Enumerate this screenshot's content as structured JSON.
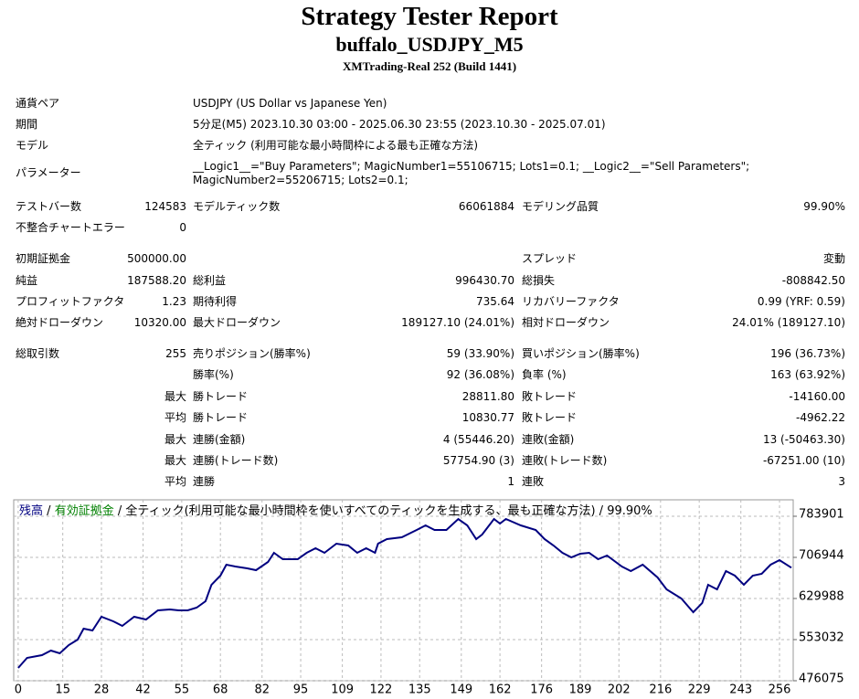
{
  "header": {
    "title": "Strategy Tester Report",
    "subtitle": "buffalo_USDJPY_M5",
    "server": "XMTrading-Real 252 (Build 1441)"
  },
  "table": {
    "info": [
      [
        "通貨ペア",
        "USDJPY (US Dollar vs Japanese Yen)"
      ],
      [
        "期間",
        "5分足(M5) 2023.10.30 03:00 - 2025.06.30 23:55 (2023.10.30 - 2025.07.01)"
      ],
      [
        "モデル",
        "全ティック (利用可能な最小時間枠による最も正確な方法)"
      ],
      [
        "パラメーター",
        "__Logic1__=\"Buy Parameters\"; MagicNumber1=55106715; Lots1=0.1; __Logic2__=\"Sell Parameters\"; MagicNumber2=55206715; Lots2=0.1;"
      ]
    ],
    "stats": [
      [
        "テストバー数",
        "124583",
        "モデルティック数",
        "66061884",
        "モデリング品質",
        "99.90%"
      ],
      [
        "不整合チャートエラー",
        "0",
        null,
        null,
        null,
        null
      ],
      [
        "初期証拠金",
        "500000.00",
        null,
        null,
        "スプレッド",
        "変動"
      ],
      [
        "純益",
        "187588.20",
        "総利益",
        "996430.70",
        "総損失",
        "-808842.50"
      ],
      [
        "プロフィットファクタ",
        "1.23",
        "期待利得",
        "735.64",
        "リカバリーファクタ",
        "0.99 (YRF: 0.59)"
      ],
      [
        "絶対ドローダウン",
        "10320.00",
        "最大ドローダウン",
        "189127.10 (24.01%)",
        "相対ドローダウン",
        "24.01% (189127.10)"
      ],
      [
        "総取引数",
        "255",
        "売りポジション(勝率%)",
        "59 (33.90%)",
        "買いポジション(勝率%)",
        "196 (36.73%)"
      ],
      [
        null,
        null,
        "勝率(%)",
        "92 (36.08%)",
        "負率 (%)",
        "163 (63.92%)"
      ],
      [
        null,
        "最大",
        "勝トレード",
        "28811.80",
        "敗トレード",
        "-14160.00"
      ],
      [
        null,
        "平均",
        "勝トレード",
        "10830.77",
        "敗トレード",
        "-4962.22"
      ],
      [
        null,
        "最大",
        "連勝(金額)",
        "4 (55446.20)",
        "連敗(金額)",
        "13 (-50463.30)"
      ],
      [
        null,
        "最大",
        "連勝(トレード数)",
        "57754.90 (3)",
        "連敗(トレード数)",
        "-67251.00 (10)"
      ],
      [
        null,
        "平均",
        "連勝",
        "1",
        "連敗",
        "3"
      ]
    ]
  },
  "chart_data": {
    "type": "line",
    "legend_items": [
      {
        "text": "残高",
        "color": "#000080"
      },
      {
        "text": "有効証拠金",
        "color": "#008000"
      }
    ],
    "separator": "/",
    "caption": "全ティック(利用可能な最小時間枠を使いすべてのティックを生成する、最も正確な方法)",
    "quality": "99.90%",
    "x": [
      0,
      3,
      8,
      11,
      14,
      17,
      20,
      22,
      25,
      28,
      32,
      35,
      39,
      43,
      47,
      51,
      54,
      57,
      60,
      63,
      65,
      68,
      70,
      73,
      77,
      80,
      84,
      86,
      89,
      94,
      97,
      100,
      103,
      107,
      111,
      114,
      117,
      120,
      121,
      124,
      129,
      134,
      137,
      140,
      144,
      148,
      151,
      154,
      156,
      160,
      162,
      164,
      169,
      174,
      177,
      180,
      183,
      186,
      189,
      192,
      195,
      198,
      203,
      206,
      210,
      215,
      218,
      223,
      227,
      230,
      232,
      235,
      238,
      241,
      244,
      247,
      250,
      253,
      256,
      260
    ],
    "series": [
      {
        "name": "残高",
        "color": "#000080",
        "values": [
          500000,
          518800,
          523950,
          532500,
          527400,
          542800,
          553000,
          573500,
          570100,
          595800,
          587200,
          578700,
          595800,
          590700,
          607800,
          609500,
          607800,
          607800,
          612900,
          624800,
          655600,
          672700,
          693300,
          689800,
          686400,
          683000,
          698400,
          715500,
          703500,
          703500,
          715500,
          724000,
          715500,
          732600,
          729200,
          715500,
          724000,
          715500,
          732600,
          741100,
          744500,
          758200,
          766800,
          758200,
          758200,
          778800,
          766800,
          741100,
          749700,
          778800,
          770200,
          778800,
          766800,
          758200,
          741100,
          729200,
          715500,
          706900,
          713800,
          715500,
          703500,
          710400,
          689800,
          681300,
          693300,
          669300,
          647100,
          630000,
          604300,
          621400,
          655600,
          647100,
          681300,
          672700,
          655600,
          672700,
          676200,
          693300,
          701800,
          687588.2
        ]
      }
    ],
    "xlim": [
      -1.5,
      260.6
    ],
    "ylim": [
      476075,
      814700
    ],
    "xticks": [
      0,
      15,
      28,
      42,
      55,
      68,
      82,
      95,
      109,
      122,
      135,
      149,
      162,
      176,
      189,
      202,
      216,
      229,
      243,
      256
    ],
    "yticks": [
      476075,
      553032,
      629988,
      706944,
      783901
    ],
    "grid": true
  }
}
